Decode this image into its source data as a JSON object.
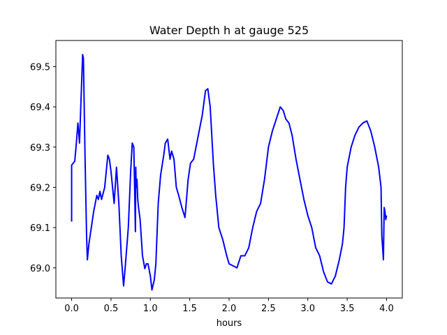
{
  "chart_data": {
    "type": "line",
    "title": "Water Depth h at gauge 525",
    "xlabel": "hours",
    "ylabel": "",
    "xlim": [
      -0.2,
      4.2
    ],
    "ylim": [
      68.925,
      69.565
    ],
    "x_ticks": [
      0.0,
      0.5,
      1.0,
      1.5,
      2.0,
      2.5,
      3.0,
      3.5,
      4.0
    ],
    "x_tick_labels": [
      "0.0",
      "0.5",
      "1.0",
      "1.5",
      "2.0",
      "2.5",
      "3.0",
      "3.5",
      "4.0"
    ],
    "y_ticks": [
      69.0,
      69.1,
      69.2,
      69.3,
      69.4,
      69.5
    ],
    "y_tick_labels": [
      "69.0",
      "69.1",
      "69.2",
      "69.3",
      "69.4",
      "69.5"
    ],
    "grid": false,
    "series": [
      {
        "color": "#0000ff",
        "x": [
          0.0,
          0.0,
          0.04,
          0.06,
          0.08,
          0.1,
          0.12,
          0.14,
          0.15,
          0.17,
          0.19,
          0.2,
          0.22,
          0.25,
          0.28,
          0.32,
          0.34,
          0.36,
          0.38,
          0.42,
          0.46,
          0.48,
          0.5,
          0.54,
          0.57,
          0.6,
          0.63,
          0.66,
          0.68,
          0.72,
          0.75,
          0.77,
          0.79,
          0.8,
          0.81,
          0.815,
          0.82,
          0.83,
          0.84,
          0.85,
          0.87,
          0.9,
          0.93,
          0.95,
          0.97,
          1.0,
          1.02,
          1.05,
          1.07,
          1.1,
          1.13,
          1.17,
          1.19,
          1.22,
          1.25,
          1.27,
          1.3,
          1.33,
          1.36,
          1.4,
          1.44,
          1.48,
          1.51,
          1.55,
          1.58,
          1.62,
          1.66,
          1.7,
          1.73,
          1.76,
          1.78,
          1.8,
          1.83,
          1.87,
          1.92,
          1.97,
          2.0,
          2.05,
          2.1,
          2.15,
          2.2,
          2.25,
          2.3,
          2.35,
          2.4,
          2.45,
          2.5,
          2.55,
          2.6,
          2.65,
          2.69,
          2.72,
          2.76,
          2.8,
          2.85,
          2.9,
          2.95,
          3.0,
          3.05,
          3.1,
          3.15,
          3.2,
          3.25,
          3.3,
          3.35,
          3.4,
          3.44,
          3.46,
          3.48,
          3.5,
          3.55,
          3.6,
          3.65,
          3.7,
          3.75,
          3.8,
          3.85,
          3.9,
          3.93,
          3.94,
          3.95,
          3.96,
          3.97,
          3.98,
          3.99,
          4.0
        ],
        "y": [
          69.115,
          69.255,
          69.265,
          69.31,
          69.36,
          69.31,
          69.42,
          69.53,
          69.52,
          69.28,
          69.08,
          69.02,
          69.06,
          69.1,
          69.14,
          69.18,
          69.17,
          69.19,
          69.17,
          69.2,
          69.28,
          69.27,
          69.24,
          69.16,
          69.25,
          69.16,
          69.03,
          68.955,
          69.0,
          69.1,
          69.24,
          69.31,
          69.3,
          69.2,
          69.09,
          69.25,
          69.2,
          69.22,
          69.17,
          69.15,
          69.12,
          69.03,
          68.998,
          69.01,
          69.01,
          68.98,
          68.945,
          68.97,
          69.01,
          69.16,
          69.23,
          69.28,
          69.31,
          69.32,
          69.27,
          69.29,
          69.27,
          69.2,
          69.18,
          69.15,
          69.125,
          69.22,
          69.26,
          69.27,
          69.3,
          69.34,
          69.38,
          69.44,
          69.445,
          69.4,
          69.33,
          69.26,
          69.18,
          69.1,
          69.07,
          69.03,
          69.01,
          69.005,
          69.0,
          69.03,
          69.03,
          69.05,
          69.1,
          69.14,
          69.16,
          69.22,
          69.3,
          69.34,
          69.37,
          69.4,
          69.39,
          69.37,
          69.36,
          69.33,
          69.27,
          69.22,
          69.17,
          69.13,
          69.1,
          69.05,
          69.03,
          68.99,
          68.965,
          68.96,
          68.98,
          69.02,
          69.06,
          69.1,
          69.2,
          69.25,
          69.3,
          69.33,
          69.35,
          69.36,
          69.365,
          69.34,
          69.3,
          69.25,
          69.2,
          69.08,
          69.05,
          69.02,
          69.15,
          69.14,
          69.12,
          69.13
        ]
      }
    ]
  }
}
